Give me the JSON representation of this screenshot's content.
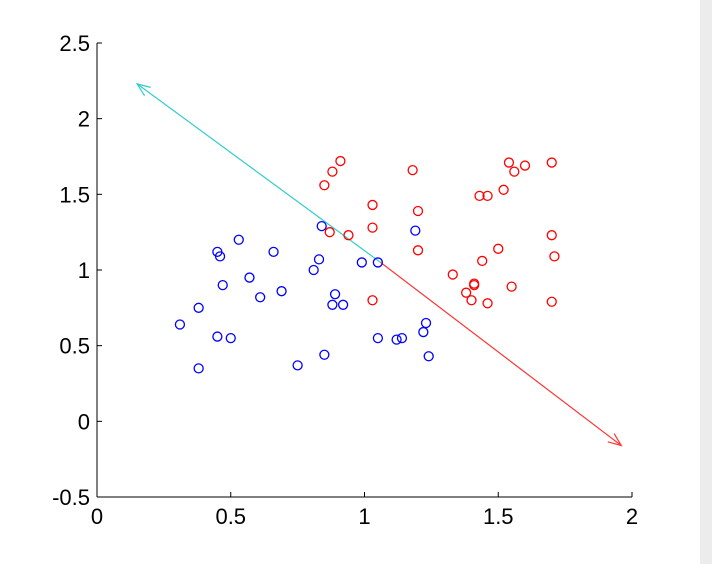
{
  "chart_data": {
    "type": "scatter",
    "title": "",
    "xlabel": "",
    "ylabel": "",
    "xlim": [
      0,
      2
    ],
    "ylim": [
      -0.5,
      2.5
    ],
    "xticks": [
      0,
      0.5,
      1,
      1.5,
      2
    ],
    "xtick_labels": [
      "0",
      "0.5",
      "1",
      "1.5",
      "2"
    ],
    "yticks": [
      -0.5,
      0,
      0.5,
      1,
      1.5,
      2,
      2.5
    ],
    "ytick_labels": [
      "-0.5",
      "0",
      "0.5",
      "1",
      "1.5",
      "2",
      "2.5"
    ],
    "grid": false,
    "legend": "none",
    "marker": "circle-open",
    "series": [
      {
        "color": "#0000ff",
        "points": [
          [
            0.31,
            0.64
          ],
          [
            0.38,
            0.75
          ],
          [
            0.38,
            0.35
          ],
          [
            0.45,
            1.12
          ],
          [
            0.46,
            1.09
          ],
          [
            0.47,
            0.9
          ],
          [
            0.45,
            0.56
          ],
          [
            0.5,
            0.55
          ],
          [
            0.53,
            1.2
          ],
          [
            0.57,
            0.95
          ],
          [
            0.61,
            0.82
          ],
          [
            0.66,
            1.12
          ],
          [
            0.69,
            0.86
          ],
          [
            0.75,
            0.37
          ],
          [
            0.81,
            1.0
          ],
          [
            0.83,
            1.07
          ],
          [
            0.84,
            1.29
          ],
          [
            0.85,
            0.44
          ],
          [
            0.88,
            0.77
          ],
          [
            0.89,
            0.84
          ],
          [
            0.92,
            0.77
          ],
          [
            0.99,
            1.05
          ],
          [
            1.05,
            1.05
          ],
          [
            1.05,
            0.55
          ],
          [
            1.12,
            0.54
          ],
          [
            1.14,
            0.55
          ],
          [
            1.19,
            1.26
          ],
          [
            1.22,
            0.59
          ],
          [
            1.23,
            0.65
          ],
          [
            1.24,
            0.43
          ]
        ]
      },
      {
        "color": "#ff0000",
        "points": [
          [
            0.85,
            1.56
          ],
          [
            0.88,
            1.65
          ],
          [
            0.91,
            1.72
          ],
          [
            0.87,
            1.25
          ],
          [
            0.94,
            1.23
          ],
          [
            1.03,
            1.43
          ],
          [
            1.03,
            1.28
          ],
          [
            1.03,
            0.8
          ],
          [
            1.18,
            1.66
          ],
          [
            1.2,
            1.39
          ],
          [
            1.2,
            1.13
          ],
          [
            1.33,
            0.97
          ],
          [
            1.38,
            0.85
          ],
          [
            1.4,
            0.8
          ],
          [
            1.41,
            0.91
          ],
          [
            1.41,
            0.9
          ],
          [
            1.43,
            1.49
          ],
          [
            1.44,
            1.06
          ],
          [
            1.46,
            1.49
          ],
          [
            1.46,
            0.78
          ],
          [
            1.5,
            1.14
          ],
          [
            1.52,
            1.53
          ],
          [
            1.54,
            1.71
          ],
          [
            1.55,
            0.89
          ],
          [
            1.56,
            1.65
          ],
          [
            1.6,
            1.69
          ],
          [
            1.7,
            1.71
          ],
          [
            1.7,
            1.23
          ],
          [
            1.71,
            1.09
          ],
          [
            1.7,
            0.79
          ]
        ]
      }
    ],
    "arrows": [
      {
        "color": "#33cccc",
        "from": [
          1.06,
          1.05
        ],
        "to": [
          0.15,
          2.23
        ]
      },
      {
        "color": "#ff3333",
        "from": [
          1.06,
          1.05
        ],
        "to": [
          1.96,
          -0.16
        ]
      }
    ]
  }
}
